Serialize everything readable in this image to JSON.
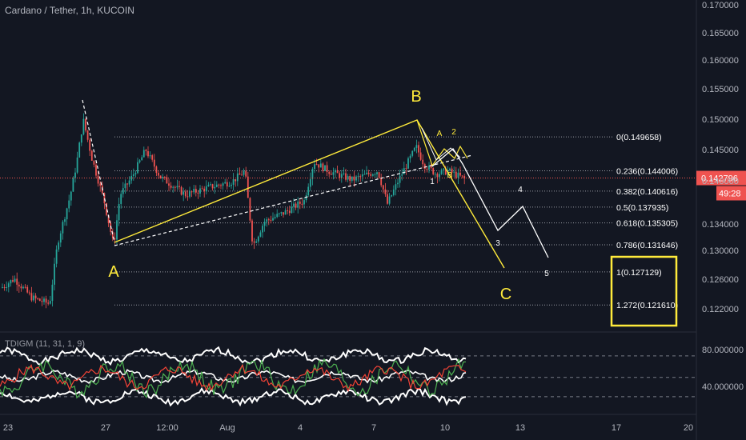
{
  "header": {
    "symbol_title": "Cardano / Tether, 1h, KUCOIN"
  },
  "indicator": {
    "title": "TDIGM (11, 31, 1, 9)"
  },
  "colors": {
    "background": "#131722",
    "up": "#26a69a",
    "down": "#ef5350",
    "yellow": "#ffeb3b",
    "white": "#e0e3eb",
    "price_line": "#ef5350",
    "rsi_green": "#4caf50",
    "rsi_red": "#f44336"
  },
  "chart_data": {
    "type": "line",
    "ylim": [
      0.1175,
      0.1725
    ],
    "price_axis_ticks": [
      "0.170000",
      "0.165000",
      "0.160000",
      "0.155000",
      "0.150000",
      "0.145000",
      "0.140000",
      "0.134000",
      "0.130000",
      "0.126000",
      "0.122000"
    ],
    "time_axis_ticks": [
      "23",
      "27",
      "12:00",
      "Aug",
      "4",
      "7",
      "10",
      "13",
      "17",
      "20"
    ],
    "current_price": {
      "value": 0.142796,
      "label": "0.142796",
      "countdown": "49:28"
    },
    "fib_levels": [
      {
        "ratio": "0",
        "price": 0.149658,
        "label": "0(0.149658)"
      },
      {
        "ratio": "0.236",
        "price": 0.144006,
        "label": "0.236(0.144006)"
      },
      {
        "ratio": "0.382",
        "price": 0.140616,
        "label": "0.382(0.140616)"
      },
      {
        "ratio": "0.5",
        "price": 0.137935,
        "label": "0.5(0.137935)"
      },
      {
        "ratio": "0.618",
        "price": 0.135305,
        "label": "0.618(0.135305)"
      },
      {
        "ratio": "0.786",
        "price": 0.131646,
        "label": "0.786(0.131646)"
      },
      {
        "ratio": "1",
        "price": 0.127129,
        "label": "1(0.127129)"
      },
      {
        "ratio": "1.272",
        "price": 0.12161,
        "label": "1.272(0.121610)"
      }
    ],
    "wave_labels_main": [
      "A",
      "B",
      "C"
    ],
    "wave_labels_sub": [
      "A",
      "2",
      "1",
      "B"
    ],
    "projection_labels": [
      "3",
      "4",
      "5"
    ],
    "indicator_axis_ticks": [
      "80.000000",
      "40.000000"
    ],
    "indicator_levels": [
      70,
      50,
      32
    ]
  }
}
